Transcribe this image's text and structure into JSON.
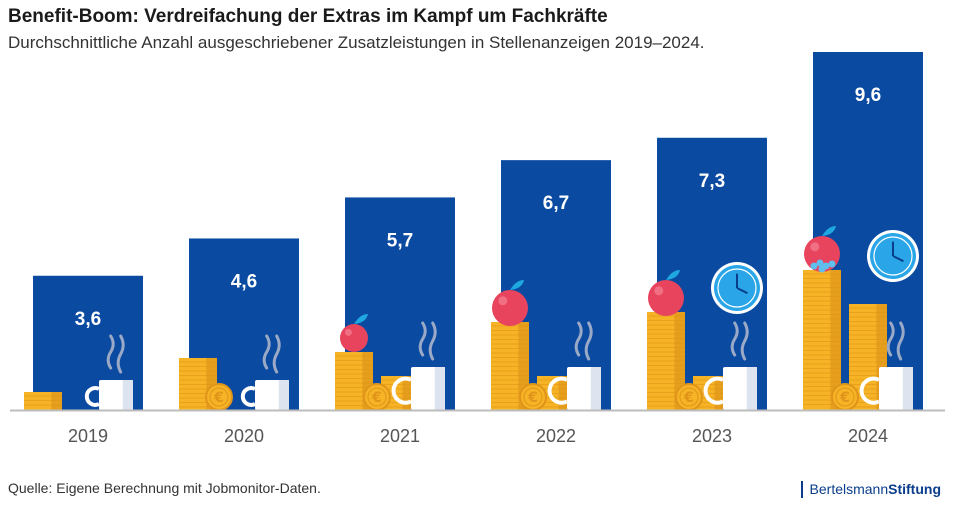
{
  "title": "Benefit-Boom: Verdreifachung der Extras im Kampf um Fachkräfte",
  "subtitle": "Durchschnittliche Anzahl ausgeschriebener Zusatzleistungen in Stellenanzeigen 2019–2024.",
  "source": "Quelle: Eigene Berechnung mit Jobmonitor-Daten.",
  "brand": {
    "regular": "Bertelsmann",
    "bold": "Stiftung"
  },
  "colors": {
    "bar": "#0a4aa0",
    "coin": "#f5b325",
    "coin_dark": "#e0951a",
    "apple": "#e8445e",
    "leaf": "#1fa8e0",
    "clock": "#2aa6e8",
    "mug": "#ffffff",
    "axis": "#bdbdbd",
    "year_text": "#555555"
  },
  "icons": [
    "coin-stack-icon",
    "euro-coin-icon",
    "coffee-mug-icon",
    "apple-icon",
    "clock-icon"
  ],
  "chart_data": {
    "type": "bar",
    "categories": [
      "2019",
      "2020",
      "2021",
      "2022",
      "2023",
      "2024"
    ],
    "values": [
      3.6,
      4.6,
      5.7,
      6.7,
      7.3,
      9.6
    ],
    "value_labels": [
      "3,6",
      "4,6",
      "5,7",
      "6,7",
      "7,3",
      "9,6"
    ],
    "title": "Benefit-Boom: Verdreifachung der Extras im Kampf um Fachkräfte",
    "xlabel": "",
    "ylabel": "",
    "ylim": [
      0,
      9.6
    ],
    "grid": false,
    "legend": "none"
  }
}
